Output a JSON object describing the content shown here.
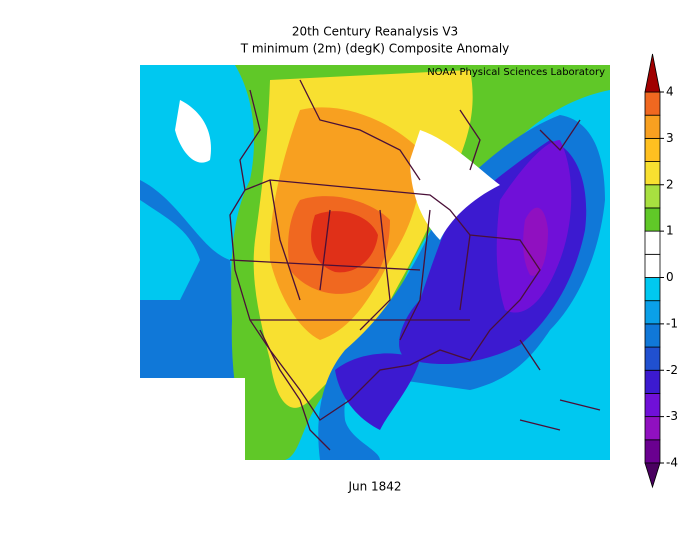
{
  "title": "20th Century Reanalysis V3",
  "subtitle": "T minimum (2m) (degK) Composite Anomaly",
  "credit": "NOAA Physical Sciences Laboratory",
  "date": "Jun 1842",
  "colorbar": {
    "range": [
      -4,
      4
    ],
    "ticks": [
      -4,
      -3,
      -2,
      -1,
      0,
      1,
      2,
      3,
      4
    ],
    "levels": [
      -4,
      -3.5,
      -3,
      -2.5,
      -2,
      -1.5,
      -1,
      -0.5,
      0,
      0.5,
      1,
      1.5,
      2,
      2.5,
      3,
      3.5,
      4
    ],
    "colors": [
      "#6a0090",
      "#9010c0",
      "#7010d8",
      "#3c1ad0",
      "#2050d0",
      "#1078d8",
      "#0aa0e8",
      "#00c8f0",
      "#ffffff",
      "#ffffff",
      "#60c828",
      "#a8e040",
      "#f8e030",
      "#ffc020",
      "#f8a020",
      "#f06820",
      "#e03018"
    ],
    "under_color": "#4a0060",
    "over_color": "#a00000"
  }
}
